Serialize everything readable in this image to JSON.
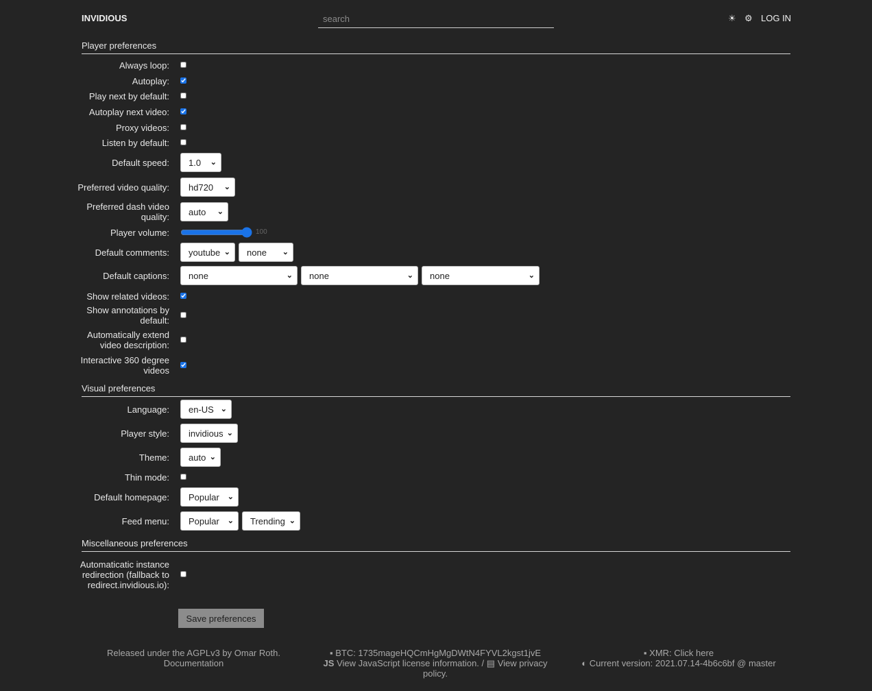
{
  "header": {
    "brand": "INVIDIOUS",
    "search_placeholder": "search",
    "theme_icon": "☀",
    "settings_icon": "⚙",
    "login": "LOG IN"
  },
  "sections": {
    "player": "Player preferences",
    "visual": "Visual preferences",
    "misc": "Miscellaneous preferences"
  },
  "rows": [
    {
      "label": "Always loop:",
      "type": "checkbox",
      "checked": false
    },
    {
      "label": "Autoplay:",
      "type": "checkbox",
      "checked": true
    },
    {
      "label": "Play next by default:",
      "type": "checkbox",
      "checked": false
    },
    {
      "label": "Autoplay next video:",
      "type": "checkbox",
      "checked": true
    },
    {
      "label": "Proxy videos:",
      "type": "checkbox",
      "checked": false
    },
    {
      "label": "Listen by default:",
      "type": "checkbox",
      "checked": false
    },
    {
      "label": "Default speed:",
      "type": "select",
      "values": [
        "1.0"
      ]
    },
    {
      "label": "Preferred video quality:",
      "type": "select",
      "values": [
        "hd720"
      ]
    },
    {
      "label": "Preferred dash video quality:",
      "type": "select",
      "values": [
        "auto"
      ]
    },
    {
      "label": "Player volume:",
      "type": "range",
      "value": 100,
      "value_text": "100"
    },
    {
      "label": "Default comments:",
      "type": "select",
      "values": [
        "youtube",
        "none"
      ]
    },
    {
      "label": "Default captions:",
      "type": "select",
      "values": [
        "none",
        "none",
        "none"
      ]
    },
    {
      "label": "Show related videos:",
      "type": "checkbox",
      "checked": true
    },
    {
      "label": "Show annotations by default:",
      "type": "checkbox",
      "checked": false
    },
    {
      "label": "Automatically extend video description:",
      "type": "checkbox",
      "checked": false
    },
    {
      "label": "Interactive 360 degree videos",
      "type": "checkbox",
      "checked": true
    },
    {
      "label": "Language:",
      "type": "select",
      "values": [
        "en-US"
      ]
    },
    {
      "label": "Player style:",
      "type": "select",
      "values": [
        "invidious"
      ]
    },
    {
      "label": "Theme:",
      "type": "select",
      "values": [
        "auto"
      ]
    },
    {
      "label": "Thin mode:",
      "type": "checkbox",
      "checked": false
    },
    {
      "label": "Default homepage:",
      "type": "select",
      "values": [
        "Popular"
      ]
    },
    {
      "label": "Feed menu:",
      "type": "select",
      "values": [
        "Popular",
        "Trending"
      ]
    },
    {
      "label": "Automaticatic instance redirection (fallback to redirect.invidious.io):",
      "type": "checkbox",
      "checked": false
    }
  ],
  "save_label": "Save preferences",
  "footer": {
    "license": "Released under the AGPLv3 by Omar Roth.",
    "documentation": "Documentation",
    "btc": "BTC: 1735mageHQCmHgMgDWtN4FYVL2kgst1jvE",
    "js_license": "View JavaScript license information.",
    "separator": "/",
    "privacy": "View privacy policy.",
    "xmr": "XMR: Click here",
    "version": "Current version: 2021.07.14-4b6c6bf @ master",
    "icons": {
      "wallet": "wallet-icon",
      "js": "JS",
      "privacy": "document-icon",
      "github": "github-icon"
    }
  }
}
